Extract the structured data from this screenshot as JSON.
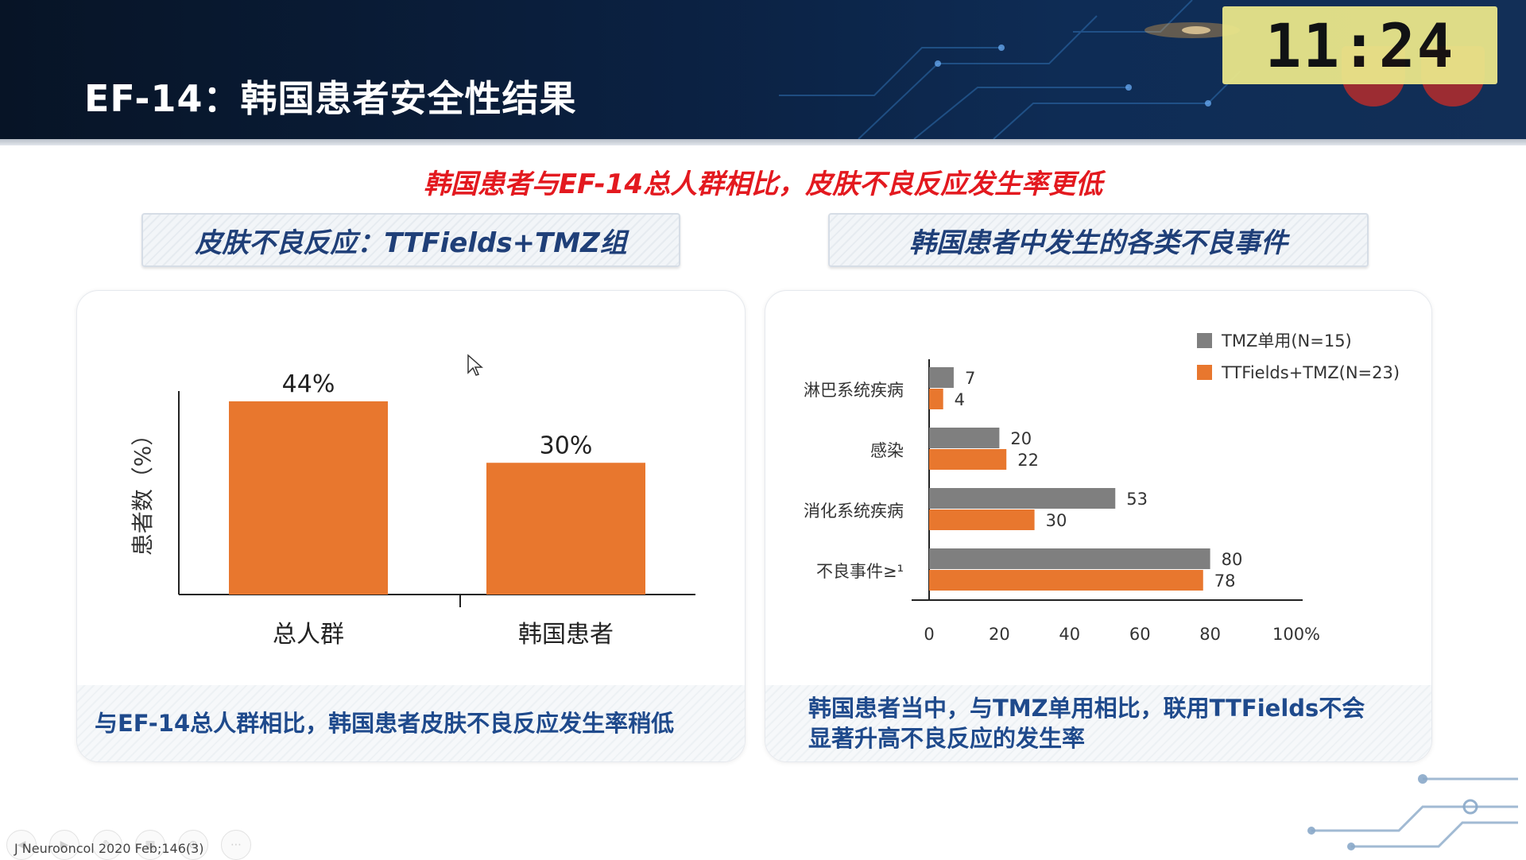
{
  "header": {
    "title": "EF-14：韩国患者安全性结果",
    "clock": "11:24"
  },
  "headline": "韩国患者与EF-14总人群相比，皮肤不良反应发生率更低",
  "left_panel": {
    "label": "皮肤不良反应：TTFields+TMZ组",
    "footer": "与EF-14总人群相比，韩国患者皮肤不良反应发生率稍低"
  },
  "right_panel": {
    "label": "韩国患者中发生的各类不良事件",
    "footer_line1": "韩国患者当中，与TMZ单用相比，联用TTFields不会",
    "footer_line2": "显著升高不良反应的发生率"
  },
  "chart_data": [
    {
      "type": "bar",
      "categories": [
        "总人群",
        "韩国患者"
      ],
      "values": [
        44,
        30
      ],
      "data_labels": [
        "44%",
        "30%"
      ],
      "ylabel": "患者数（%）",
      "ylim": [
        0,
        60
      ],
      "color": "#e8772e",
      "grid": false
    },
    {
      "type": "bar",
      "orientation": "horizontal",
      "categories": [
        "淋巴系统疾病",
        "感染",
        "消化系统疾病",
        "不良事件≥¹"
      ],
      "series": [
        {
          "name": "TMZ单用(N=15)",
          "values": [
            7,
            20,
            53,
            80
          ],
          "color": "#7f7f7f"
        },
        {
          "name": "TTFields+TMZ(N=23)",
          "values": [
            4,
            22,
            30,
            78
          ],
          "color": "#e8772e"
        }
      ],
      "xticks": [
        "0",
        "20",
        "40",
        "60",
        "80",
        "100%"
      ],
      "xlim": [
        0,
        100
      ],
      "legend": "top-right",
      "grid": false
    }
  ],
  "footer": {
    "citation": "J Neurooncol 2020 Feb;146(3)"
  }
}
